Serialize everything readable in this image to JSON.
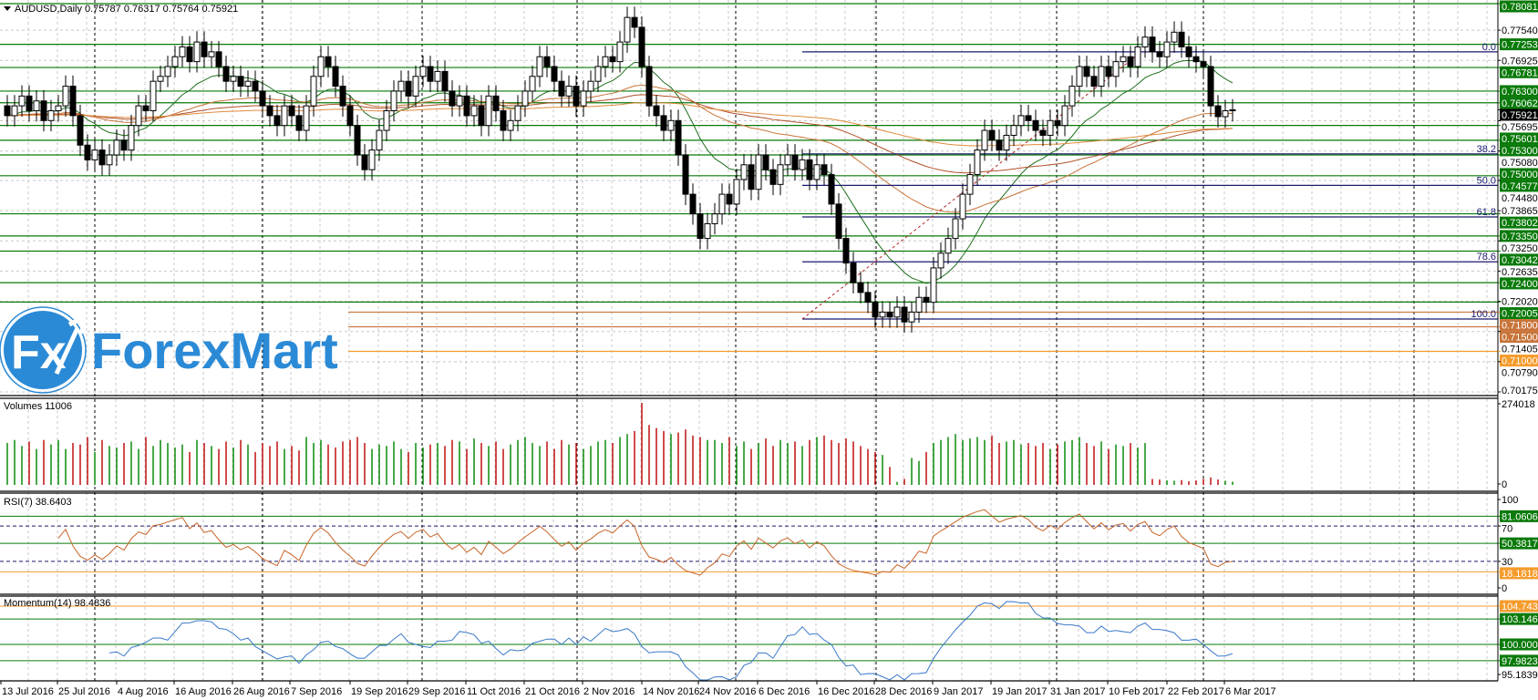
{
  "header": {
    "symbol_line": "AUDUSD,Daily  0.75787 0.76317 0.75764 0.75921"
  },
  "logo": {
    "text": "ForexMart",
    "mark": "Fx"
  },
  "panes": {
    "volumes_label": "Volumes 11006",
    "rsi_label": "RSI(7) 38.6403",
    "momentum_label": "Momentum(14) 98.4836"
  },
  "colors": {
    "bull": "#ffffff",
    "bear": "#000000",
    "level_green": "#0a7a0a",
    "level_orange": "#f59b2b",
    "level_brown": "#c8743a",
    "fib": "#1a1a6e",
    "rsi": "#c86428",
    "momentum": "#3a78c8",
    "vol_up": "#0a8a0a",
    "vol_down": "#c01010",
    "logo_blue": "#2b8ad6"
  },
  "chart_data": {
    "type": "candlestick",
    "title": "AUDUSD,Daily",
    "ohlc_last": {
      "open": 0.75787,
      "high": 0.76317,
      "low": 0.75764,
      "close": 0.75921
    },
    "ylim": [
      0.70175,
      0.78081
    ],
    "closes": [
      0.758,
      0.76,
      0.762,
      0.759,
      0.761,
      0.757,
      0.759,
      0.76,
      0.764,
      0.758,
      0.752,
      0.749,
      0.751,
      0.748,
      0.75,
      0.753,
      0.751,
      0.756,
      0.76,
      0.759,
      0.765,
      0.766,
      0.768,
      0.77,
      0.772,
      0.769,
      0.773,
      0.77,
      0.771,
      0.768,
      0.765,
      0.766,
      0.764,
      0.765,
      0.763,
      0.76,
      0.758,
      0.756,
      0.76,
      0.758,
      0.755,
      0.76,
      0.766,
      0.77,
      0.768,
      0.764,
      0.76,
      0.756,
      0.75,
      0.747,
      0.751,
      0.755,
      0.759,
      0.763,
      0.765,
      0.762,
      0.766,
      0.768,
      0.765,
      0.767,
      0.763,
      0.76,
      0.762,
      0.758,
      0.76,
      0.756,
      0.762,
      0.759,
      0.755,
      0.757,
      0.76,
      0.763,
      0.766,
      0.77,
      0.768,
      0.765,
      0.762,
      0.764,
      0.76,
      0.763,
      0.765,
      0.768,
      0.77,
      0.769,
      0.773,
      0.778,
      0.776,
      0.768,
      0.76,
      0.758,
      0.755,
      0.757,
      0.75,
      0.742,
      0.738,
      0.733,
      0.736,
      0.738,
      0.742,
      0.74,
      0.745,
      0.748,
      0.743,
      0.75,
      0.747,
      0.744,
      0.748,
      0.75,
      0.747,
      0.749,
      0.745,
      0.748,
      0.746,
      0.74,
      0.733,
      0.728,
      0.724,
      0.722,
      0.72,
      0.717,
      0.718,
      0.717,
      0.719,
      0.716,
      0.718,
      0.721,
      0.72,
      0.727,
      0.73,
      0.733,
      0.737,
      0.742,
      0.746,
      0.751,
      0.755,
      0.753,
      0.751,
      0.754,
      0.756,
      0.758,
      0.757,
      0.755,
      0.754,
      0.757,
      0.756,
      0.76,
      0.764,
      0.768,
      0.766,
      0.764,
      0.768,
      0.766,
      0.769,
      0.77,
      0.768,
      0.772,
      0.774,
      0.771,
      0.77,
      0.773,
      0.775,
      0.772,
      0.77,
      0.769,
      0.768,
      0.76,
      0.7578,
      0.759,
      0.7592
    ],
    "volumes_k": [
      140,
      150,
      130,
      145,
      120,
      150,
      135,
      150,
      120,
      140,
      135,
      160,
      110,
      150,
      130,
      125,
      140,
      145,
      120,
      160,
      130,
      150,
      140,
      125,
      135,
      110,
      150,
      140,
      130,
      120,
      145,
      125,
      150,
      135,
      110,
      140,
      130,
      145,
      120,
      130,
      115,
      160,
      140,
      150,
      135,
      125,
      145,
      150,
      160,
      140,
      120,
      135,
      130,
      145,
      120,
      110,
      140,
      125,
      135,
      140,
      130,
      150,
      145,
      120,
      155,
      140,
      130,
      145,
      120,
      135,
      150,
      160,
      140,
      130,
      145,
      120,
      150,
      135,
      140,
      120,
      130,
      145,
      150,
      140,
      160,
      170,
      180,
      274,
      200,
      190,
      180,
      170,
      175,
      185,
      165,
      160,
      150,
      150,
      140,
      160,
      130,
      145,
      120,
      140,
      155,
      130,
      150,
      140,
      145,
      130,
      150,
      160,
      165,
      150,
      140,
      155,
      145,
      130,
      120,
      110,
      100,
      60,
      10,
      20,
      90,
      80,
      110,
      140,
      150,
      160,
      170,
      150,
      155,
      160,
      150,
      165,
      140,
      145,
      150,
      135,
      140,
      130,
      140,
      120,
      135,
      145,
      150,
      160,
      140,
      130,
      145,
      120,
      135,
      130,
      140,
      125,
      140,
      20,
      18,
      15,
      14,
      16,
      12,
      15,
      20,
      25,
      18,
      14,
      11
    ],
    "volume_axis": {
      "max_label": "274018",
      "min_label": "0",
      "max": 274.018
    },
    "x_tick_labels": [
      "13 Jul 2016",
      "25 Jul 2016",
      "4 Aug 2016",
      "16 Aug 2016",
      "26 Aug 2016",
      "7 Sep 2016",
      "19 Sep 2016",
      "29 Sep 2016",
      "11 Oct 2016",
      "21 Oct 2016",
      "2 Nov 2016",
      "14 Nov 2016",
      "24 Nov 2016",
      "6 Dec 2016",
      "16 Dec 2016",
      "28 Dec 2016",
      "9 Jan 2017",
      "19 Jan 2017",
      "31 Jan 2017",
      "10 Feb 2017",
      "22 Feb 2017",
      "6 Mar 2017"
    ],
    "price_ticks": [
      "0.77540",
      "0.76925",
      "0.75695",
      "0.75080",
      "0.74480",
      "0.73865",
      "0.73250",
      "0.72635",
      "0.72020",
      "0.71405",
      "0.70790",
      "0.70175"
    ],
    "current_price": "0.75921",
    "levels": [
      {
        "value": "0.78081",
        "style": "green",
        "full": true
      },
      {
        "value": "0.77253",
        "style": "green",
        "full": true
      },
      {
        "value": "0.76781",
        "style": "green",
        "full": true
      },
      {
        "value": "0.76300",
        "style": "green",
        "full": true
      },
      {
        "value": "0.76062",
        "style": "green",
        "full": true
      },
      {
        "value": "0.75601",
        "style": "green",
        "full": true
      },
      {
        "value": "0.75300",
        "style": "green",
        "full": true
      },
      {
        "value": "0.75000",
        "style": "green",
        "full": true
      },
      {
        "value": "0.74577",
        "style": "green",
        "full": true
      },
      {
        "value": "0.73802",
        "style": "green",
        "full": true
      },
      {
        "value": "0.73350",
        "style": "green",
        "full": true
      },
      {
        "value": "0.73042",
        "style": "green",
        "full": true
      },
      {
        "value": "0.72400",
        "style": "green",
        "full": true
      },
      {
        "value": "0.72005",
        "style": "green",
        "full": true
      },
      {
        "value": "0.71800",
        "style": "brown",
        "full": false
      },
      {
        "value": "0.71500",
        "style": "brown",
        "full": false
      },
      {
        "value": "0.71000",
        "style": "orange",
        "full": false
      }
    ],
    "fibonacci": {
      "high": 0.771,
      "low": 0.7166,
      "levels": [
        {
          "label": "0.0",
          "ratio": 0
        },
        {
          "label": "38.2",
          "ratio": 0.382
        },
        {
          "label": "50.0",
          "ratio": 0.5
        },
        {
          "label": "61.8",
          "ratio": 0.618
        },
        {
          "label": "78.6",
          "ratio": 0.786
        },
        {
          "label": "100.0",
          "ratio": 1
        }
      ]
    },
    "rsi": {
      "period": 7,
      "ylim": [
        0,
        100
      ],
      "ticks": [
        "100",
        "70",
        "30",
        "0"
      ],
      "levels": [
        {
          "value": "81.0606",
          "style": "green"
        },
        {
          "value": "50.3817",
          "style": "green"
        },
        {
          "value": "18.1818",
          "style": "orange"
        }
      ]
    },
    "momentum": {
      "period": 14,
      "bottom_label": "95.1839",
      "levels": [
        {
          "value": "104.7430",
          "style": "orange"
        },
        {
          "value": "103.1460",
          "style": "green"
        },
        {
          "value": "100.0000",
          "style": "green"
        },
        {
          "value": "97.9823",
          "style": "green"
        }
      ]
    }
  }
}
